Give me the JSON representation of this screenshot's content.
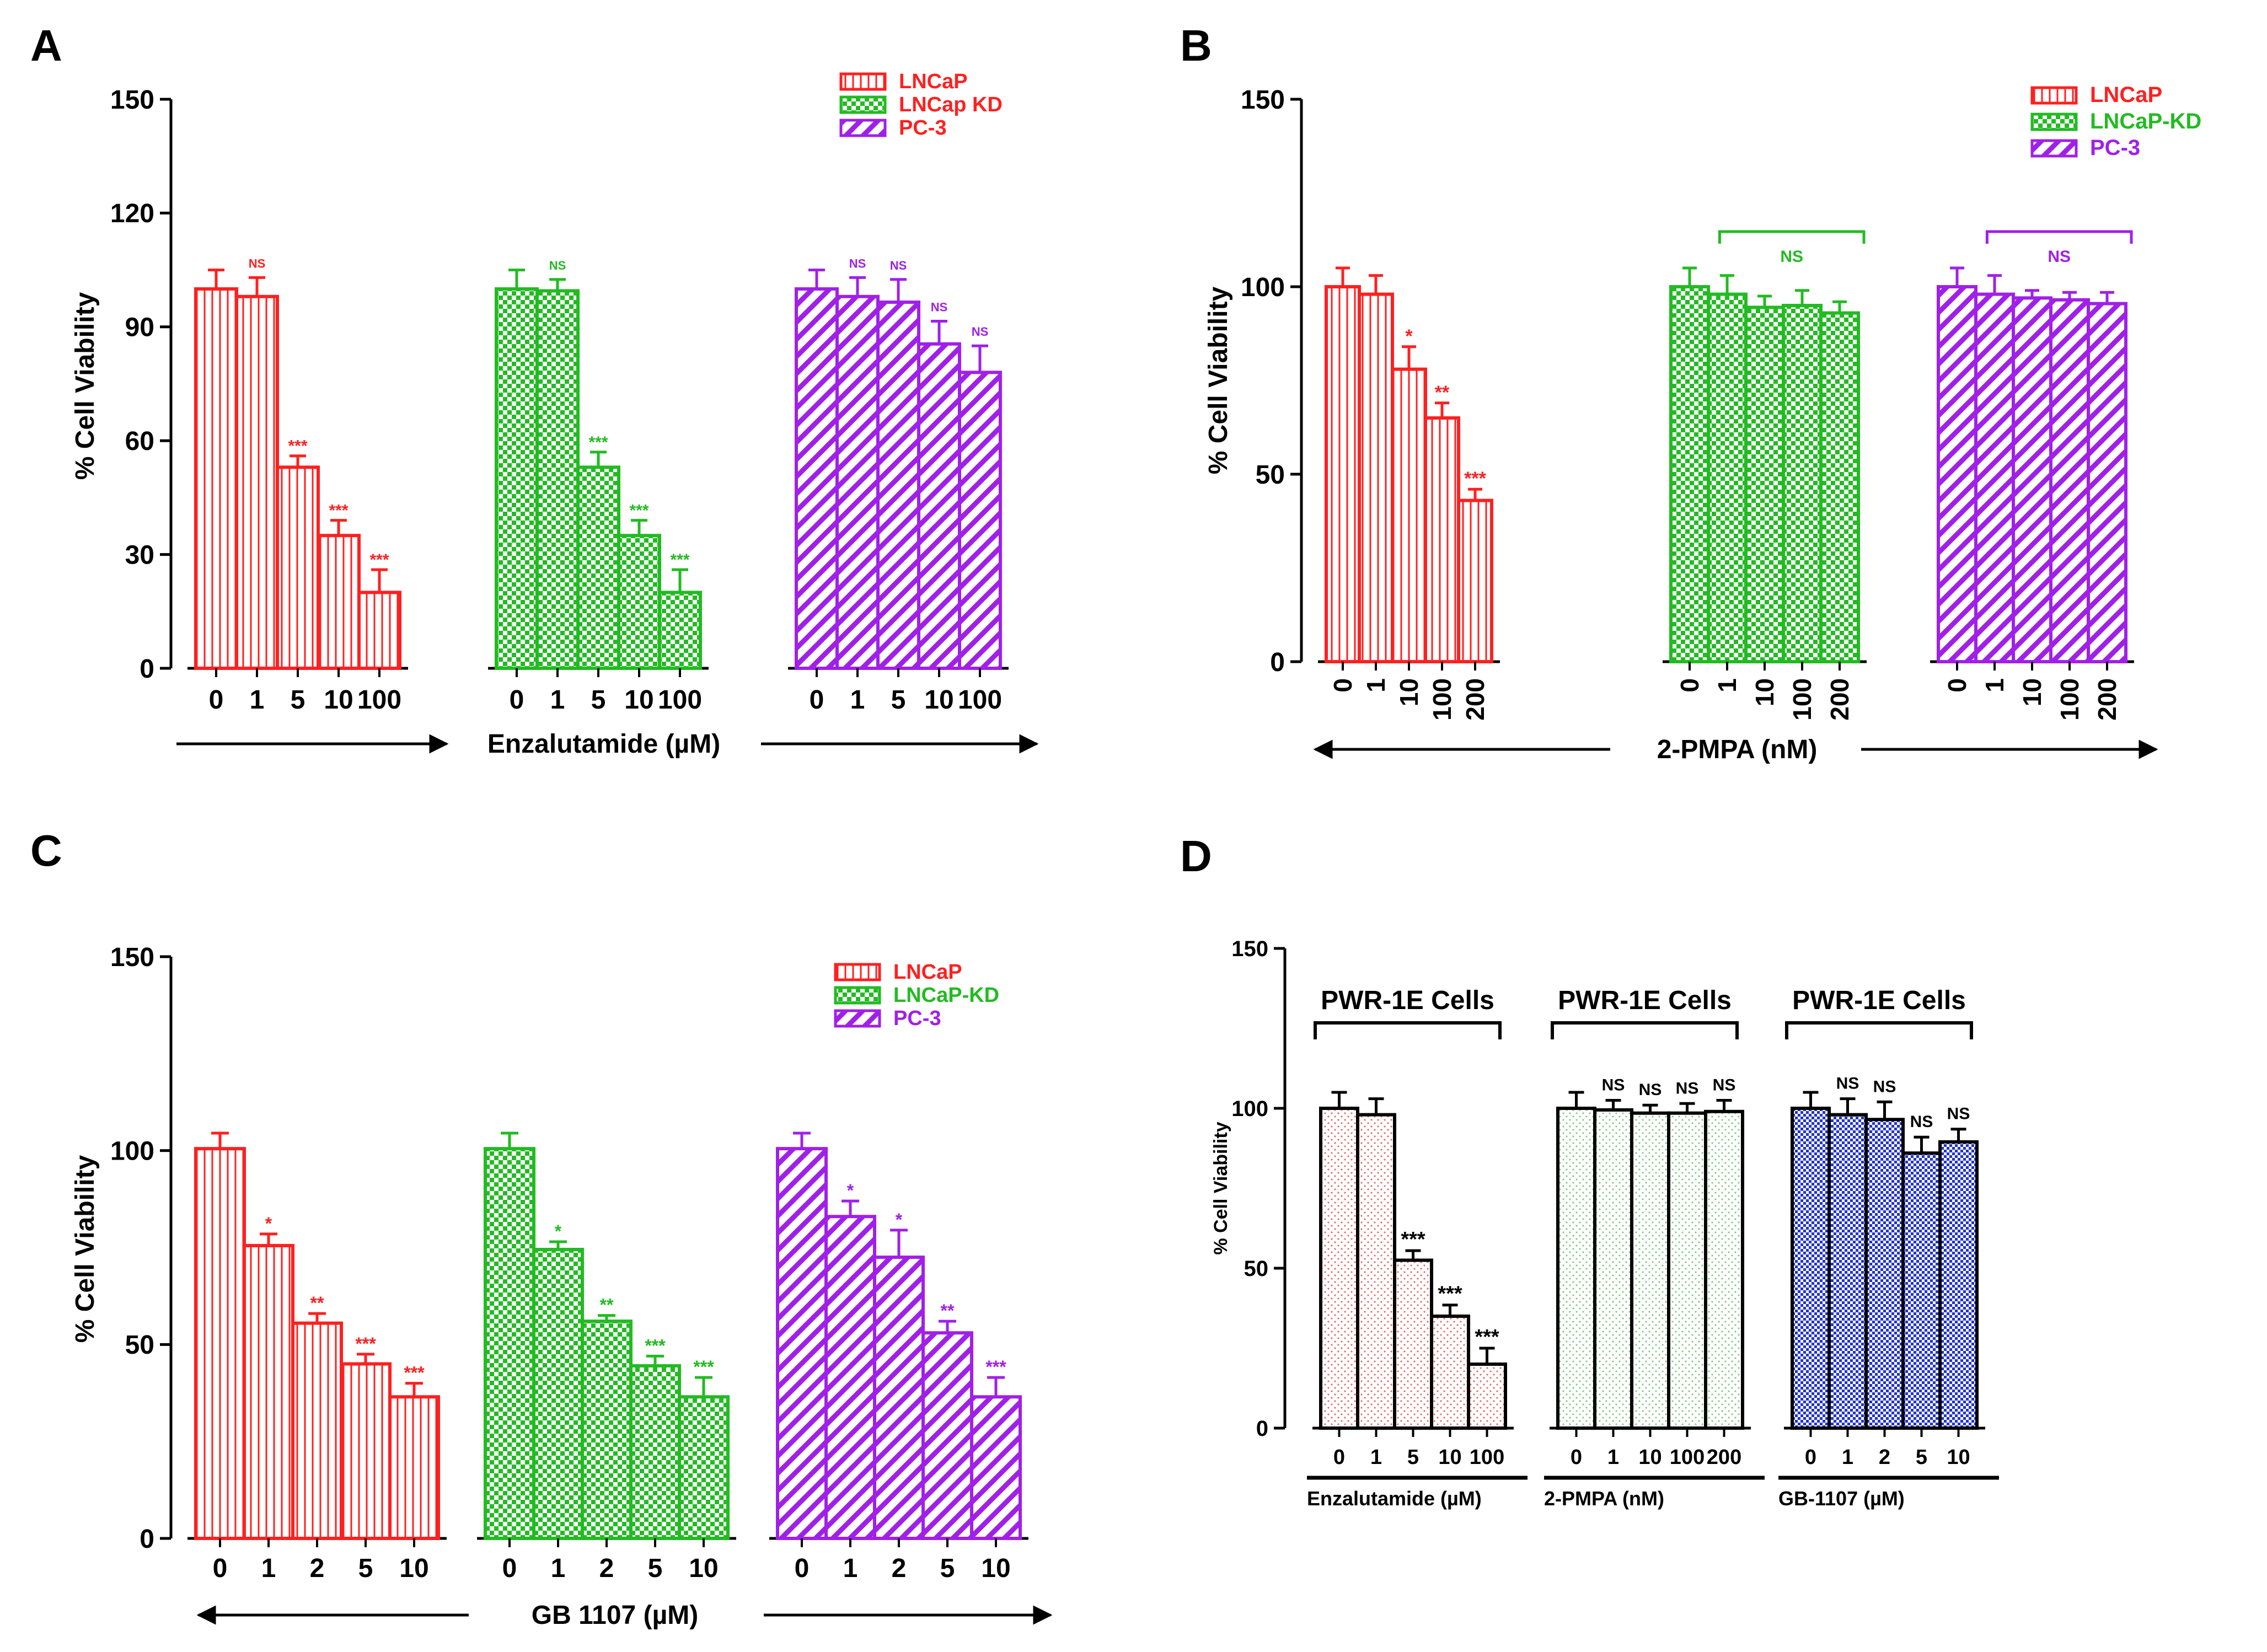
{
  "colors": {
    "lncap": "#FF2020",
    "lncap_kd": "#22BB22",
    "pc3": "#A020E8",
    "pwr_a": "#E07070",
    "pwr_b": "#88C888",
    "pwr_c": "#2233CC",
    "axis": "#000000"
  },
  "chart_data": [
    {
      "panel": "A",
      "type": "bar",
      "ylabel": "% Cell Viability",
      "xlabel": "Enzalutamide (µM)",
      "xlabel_arrows": true,
      "ylim": [
        0,
        150
      ],
      "yticks": [
        "0",
        "30",
        "60",
        "90",
        "120",
        "150"
      ],
      "legend": {
        "position": "top-right",
        "entries": [
          {
            "label": "LNCaP",
            "series": "lncap"
          },
          {
            "label": "LNCap KD",
            "series": "lncap_kd"
          },
          {
            "label": "PC-3",
            "series": "pc3"
          }
        ]
      },
      "groups": [
        {
          "series": "lncap",
          "categories": [
            "0",
            "1",
            "5",
            "10",
            "100"
          ],
          "values": [
            100,
            98,
            53,
            35,
            20
          ],
          "errors": [
            5,
            5,
            3,
            4,
            6
          ],
          "annotations": [
            "",
            "NS",
            "***",
            "***",
            "***"
          ]
        },
        {
          "series": "lncap_kd",
          "categories": [
            "0",
            "1",
            "5",
            "10",
            "100"
          ],
          "values": [
            100,
            99.5,
            53,
            35,
            20
          ],
          "errors": [
            5,
            3,
            4,
            4,
            6
          ],
          "annotations": [
            "",
            "NS",
            "***",
            "***",
            "***"
          ]
        },
        {
          "series": "pc3",
          "categories": [
            "0",
            "1",
            "5",
            "10",
            "100"
          ],
          "values": [
            100,
            98,
            96.5,
            85.5,
            78
          ],
          "errors": [
            5,
            5,
            6,
            6,
            7
          ],
          "annotations": [
            "",
            "NS",
            "NS",
            "NS",
            "NS"
          ]
        }
      ]
    },
    {
      "panel": "B",
      "type": "bar",
      "ylabel": "% Cell Viability",
      "xlabel": "2-PMPA (nM)",
      "xlabel_arrows": true,
      "ylim": [
        0,
        150
      ],
      "yticks": [
        "0",
        "50",
        "100",
        "150"
      ],
      "legend": {
        "position": "top-right",
        "entries": [
          {
            "label": "LNCaP",
            "series": "lncap"
          },
          {
            "label": "LNCaP-KD",
            "series": "lncap_kd"
          },
          {
            "label": "PC-3",
            "series": "pc3"
          }
        ]
      },
      "groups": [
        {
          "series": "lncap",
          "categories": [
            "0",
            "1",
            "10",
            "100",
            "200"
          ],
          "values": [
            100,
            98,
            78,
            65,
            43
          ],
          "errors": [
            5,
            5,
            6,
            4,
            3
          ],
          "annotations": [
            "",
            "",
            "*",
            "**",
            "***"
          ]
        },
        {
          "series": "lncap_kd",
          "categories": [
            "0",
            "1",
            "10",
            "100",
            "200"
          ],
          "values": [
            100,
            98,
            94.5,
            95,
            93
          ],
          "errors": [
            5,
            5,
            3,
            4,
            3
          ],
          "bracket": "NS"
        },
        {
          "series": "pc3",
          "categories": [
            "0",
            "1",
            "10",
            "100",
            "200"
          ],
          "values": [
            100,
            98,
            97,
            96.5,
            95.5
          ],
          "errors": [
            5,
            5,
            2,
            2,
            3
          ],
          "bracket": "NS"
        }
      ]
    },
    {
      "panel": "C",
      "type": "bar",
      "ylabel": "% Cell Viability",
      "xlabel": "GB 1107 (µM)",
      "xlabel_arrows": true,
      "ylim": [
        0,
        150
      ],
      "yticks": [
        "0",
        "50",
        "100",
        "150"
      ],
      "legend": {
        "position": "top-right",
        "entries": [
          {
            "label": "LNCaP",
            "series": "lncap"
          },
          {
            "label": "LNCaP-KD",
            "series": "lncap_kd"
          },
          {
            "label": "PC-3",
            "series": "pc3"
          }
        ]
      },
      "groups": [
        {
          "series": "lncap",
          "categories": [
            "0",
            "1",
            "2",
            "5",
            "10"
          ],
          "values": [
            100.5,
            75.5,
            55.5,
            45,
            36.5
          ],
          "errors": [
            4,
            3,
            2.5,
            2.5,
            3.5
          ],
          "annotations": [
            "",
            "*",
            "**",
            "***",
            "***"
          ]
        },
        {
          "series": "lncap_kd",
          "categories": [
            "0",
            "1",
            "2",
            "5",
            "10"
          ],
          "values": [
            100.5,
            74.5,
            56,
            44.5,
            36.5
          ],
          "errors": [
            4,
            2,
            1.5,
            2.5,
            5
          ],
          "annotations": [
            "",
            "*",
            "**",
            "***",
            "***"
          ]
        },
        {
          "series": "pc3",
          "categories": [
            "0",
            "1",
            "2",
            "5",
            "10"
          ],
          "values": [
            100.5,
            83,
            72.5,
            53,
            36.5
          ],
          "errors": [
            4,
            4,
            7,
            3,
            5
          ],
          "annotations": [
            "",
            "*",
            "*",
            "**",
            "***"
          ]
        }
      ]
    },
    {
      "panel": "D",
      "type": "bar",
      "ylabel": "% Cell Viability",
      "ylim": [
        0,
        150
      ],
      "yticks": [
        "0",
        "50",
        "100",
        "150"
      ],
      "groups": [
        {
          "series": "pwr_a",
          "bracket": "PWR-1E  Cells",
          "group_label": "Enzalutamide (µM)",
          "categories": [
            "0",
            "1",
            "5",
            "10",
            "100"
          ],
          "values": [
            100,
            98,
            52.5,
            35,
            20
          ],
          "errors": [
            5,
            5,
            3,
            3.5,
            5
          ],
          "annotations": [
            "",
            "",
            "***",
            "***",
            "***"
          ]
        },
        {
          "series": "pwr_b",
          "bracket": "PWR-1E  Cells",
          "group_label": "2-PMPA (nM)",
          "categories": [
            "0",
            "1",
            "10",
            "100",
            "200"
          ],
          "values": [
            100,
            99.5,
            98.5,
            98.5,
            99
          ],
          "errors": [
            5,
            3,
            2.5,
            3,
            3.5
          ],
          "annotations": [
            "",
            "NS",
            "NS",
            "NS",
            "NS"
          ]
        },
        {
          "series": "pwr_c",
          "bracket": "PWR-1E  Cells",
          "group_label": "GB-1107 (µM)",
          "categories": [
            "0",
            "1",
            "2",
            "5",
            "10"
          ],
          "values": [
            100,
            98,
            96.5,
            86,
            89.5
          ],
          "errors": [
            5,
            5,
            5.5,
            5,
            4
          ],
          "annotations": [
            "",
            "NS",
            "NS",
            "NS",
            "NS"
          ]
        }
      ]
    }
  ]
}
